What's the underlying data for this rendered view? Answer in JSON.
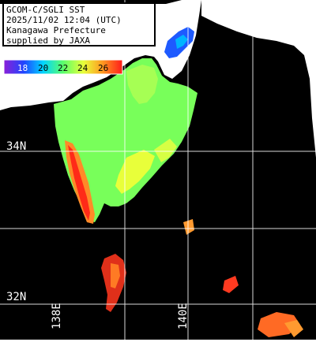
{
  "header": {
    "line1": "GCOM-C/SGLI SST",
    "line2": "2025/11/02 12:04 (UTC)",
    "line3": "Kanagawa Prefecture",
    "line4": "supplied by JAXA"
  },
  "legend": {
    "ticks": [
      "18",
      "20",
      "22",
      "24",
      "26"
    ],
    "colors": [
      "#8a1fd8",
      "#1e46ff",
      "#00d4ff",
      "#5cff6a",
      "#e8ff3a",
      "#ff9a20",
      "#ff1a1a"
    ]
  },
  "grid": {
    "lat_labels": [
      "34N",
      "32N"
    ],
    "lon_labels": [
      "138E",
      "140E"
    ]
  },
  "colors": {
    "land": "#ffffff",
    "sea_nodata": "#000000",
    "grid": "#ffffff"
  }
}
